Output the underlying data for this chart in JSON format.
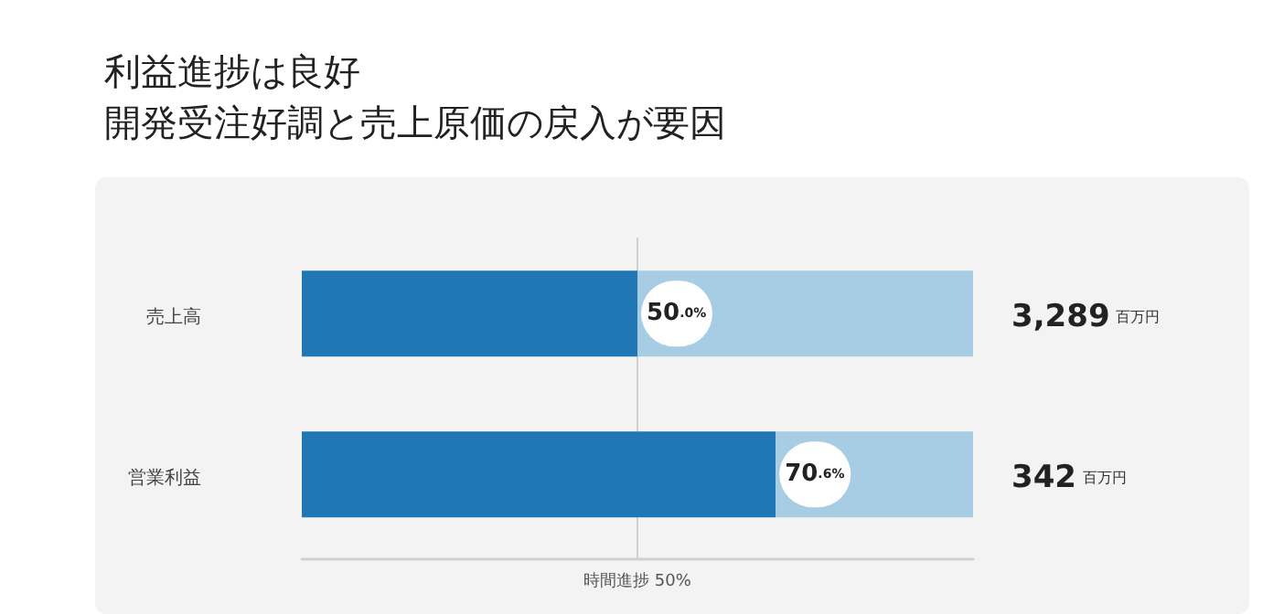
{
  "chart_data": {
    "type": "bar",
    "orientation": "horizontal",
    "stacked": true,
    "title": "利益進捗は良好",
    "subtitle": "開発受注好調と売上原価の戻入が要因",
    "categories": [
      "売上高",
      "営業利益"
    ],
    "series": [
      {
        "color": "#2176b4",
        "values": [
          50.0,
          70.6
        ],
        "value_labels": [
          "50.0%",
          "70.6%"
        ]
      },
      {
        "color": "#a6cde3",
        "values": [
          50.0,
          29.4
        ]
      }
    ],
    "xlim": [
      0,
      100
    ],
    "ref_lines": [
      {
        "axis": "x",
        "value": 50,
        "label": "時間進捗 50%",
        "color": "#d0d0d0"
      }
    ],
    "annotations": [
      {
        "text": "3,289 百万円",
        "x": 100,
        "y": "売上高"
      },
      {
        "text": "342 百万円",
        "x": 100,
        "y": "営業利益"
      }
    ],
    "tick_labels": "y",
    "grid": false
  }
}
